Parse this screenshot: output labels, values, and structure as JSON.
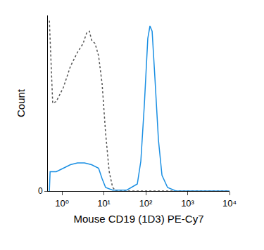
{
  "chart_data": {
    "type": "line",
    "x_label": "Mouse CD19 (1D3) PE-Cy7",
    "y_label": "Count",
    "log": "x",
    "grid": false,
    "xlim": [
      0.46,
      10000
    ],
    "xticks": [
      {
        "value": 1,
        "label": "10⁰"
      },
      {
        "value": 10,
        "label": "10¹"
      },
      {
        "value": 100,
        "label": "10²"
      },
      {
        "value": 1000,
        "label": "10³"
      },
      {
        "value": 10000,
        "label": "10⁴"
      }
    ],
    "ylim": [
      0,
      100
    ],
    "yticks": [
      0
    ],
    "series": [
      {
        "color": "#555555",
        "line_style": "dotted",
        "x": [
          0.5,
          0.6,
          0.73,
          1.08,
          1.59,
          2.34,
          3.19,
          3.87,
          4.52,
          5.08,
          6.17,
          7.48,
          9.08,
          11.0,
          13.4,
          16.2,
          19.7,
          35.2,
          10000
        ],
        "values": [
          97,
          50,
          51,
          59,
          71,
          79,
          84,
          90,
          91,
          86,
          84,
          77,
          61,
          33,
          11,
          2,
          0,
          0,
          0
        ]
      },
      {
        "color": "#1a8fe3",
        "line_style": "solid",
        "x": [
          0.5,
          0.52,
          0.6,
          0.73,
          1.08,
          1.59,
          2.34,
          3.45,
          5.08,
          7.48,
          9.08,
          11.0,
          16.2,
          35.2,
          62.9,
          76.3,
          92.5,
          112,
          126,
          142,
          165,
          201,
          244,
          332,
          528,
          10000
        ],
        "values": [
          0,
          11,
          11,
          11,
          13,
          15,
          16,
          16,
          15,
          13,
          7,
          2,
          0.5,
          0.5,
          4,
          17,
          49,
          87,
          94,
          91,
          65,
          29,
          9,
          2,
          0,
          0
        ]
      }
    ]
  }
}
